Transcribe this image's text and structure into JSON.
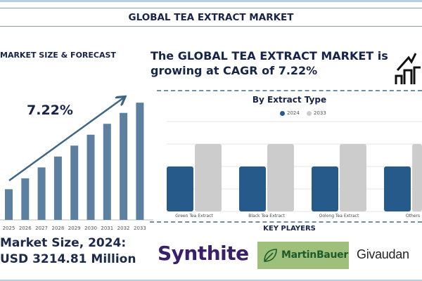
{
  "header": {
    "title": "GLOBAL TEA EXTRACT MARKET"
  },
  "left": {
    "section_title": "MARKET SIZE & FORECAST",
    "cagr_label": "7.22%",
    "market_size_line1": "Market Size, 2024:",
    "market_size_line2": "USD 3214.81 Million"
  },
  "headline": {
    "line1": "The GLOBAL TEA EXTRACT MARKET is",
    "line2": "growing at CAGR of 7.22%"
  },
  "key_players": {
    "title": "KEY PLAYERS",
    "logos": [
      "Synthite",
      "MartinBauer",
      "Givaudan"
    ]
  },
  "icons": [
    "growth-chart-house-icon",
    "leaf-icon"
  ],
  "colors": {
    "forecast_bar": "#5d7fa0",
    "series_2024": "#255a8a",
    "series_2033": "#cccccc",
    "title": "#16244a",
    "martin_bg": "#9fc07a"
  },
  "chart_data": [
    {
      "type": "bar",
      "title": "",
      "categories": [
        "2025",
        "2026",
        "2027",
        "2028",
        "2029",
        "2030",
        "2031",
        "2032",
        "2033"
      ],
      "values": [
        45,
        61,
        77,
        93,
        109,
        125,
        141,
        157,
        172
      ],
      "ylim": [
        0,
        180
      ],
      "grid": false,
      "annotation": "7.22%",
      "trend_arrow": true
    },
    {
      "type": "bar",
      "title": "By Extract Type",
      "categories": [
        "Green Tea Extract",
        "Black Tea Extract",
        "Oolong Tea Extract",
        "Others"
      ],
      "series": [
        {
          "name": "2024",
          "values": [
            2,
            2,
            2,
            2
          ]
        },
        {
          "name": "2033",
          "values": [
            3,
            3,
            3,
            3
          ]
        }
      ],
      "ylim": [
        0,
        4
      ],
      "grid": true,
      "legend": "top-center"
    }
  ]
}
